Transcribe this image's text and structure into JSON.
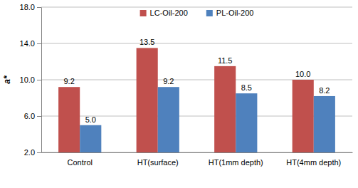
{
  "chart_data": {
    "type": "bar",
    "y_label": "a*",
    "categories": [
      "Control",
      "HT(surface)",
      "HT(1mm depth)",
      "HT(4mm depth)"
    ],
    "series": [
      {
        "name": "LC-Oil-200",
        "color": "#c0504d",
        "values": [
          9.2,
          13.5,
          11.5,
          10.0
        ],
        "value_labels": [
          "9.2",
          "13.5",
          "11.5",
          "10.0"
        ]
      },
      {
        "name": "PL-Oil-200",
        "color": "#4f81bd",
        "values": [
          5.0,
          9.2,
          8.5,
          8.2
        ],
        "value_labels": [
          "5.0",
          "9.2",
          "8.5",
          "8.2"
        ]
      }
    ],
    "ylim": [
      2,
      18
    ],
    "yticks": [
      {
        "value": 2,
        "label": "2.0"
      },
      {
        "value": 6,
        "label": "6.0"
      },
      {
        "value": 10,
        "label": "10.0"
      },
      {
        "value": 14,
        "label": "14.0"
      },
      {
        "value": 18,
        "label": "18.0"
      }
    ],
    "grid": true,
    "legend": "top",
    "data_labels": true
  }
}
